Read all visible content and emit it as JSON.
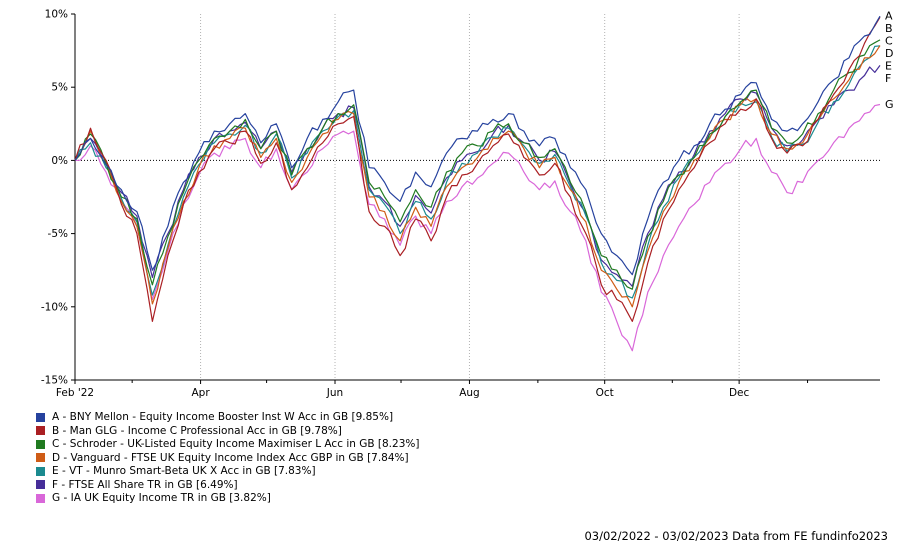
{
  "chart_data": {
    "type": "line",
    "title": "",
    "date_range": "03/02/2022 - 03/02/2023",
    "ylim": [
      -15,
      10
    ],
    "grid": "vertical dotted gridlines at labeled month ticks; dotted horizontal zero line",
    "legend_position": "bottom-left",
    "y_ticks": [
      {
        "value": 10,
        "label": "10%"
      },
      {
        "value": 5,
        "label": "5%"
      },
      {
        "value": 0,
        "label": "0%"
      },
      {
        "value": -5,
        "label": "-5%"
      },
      {
        "value": -10,
        "label": "-10%"
      },
      {
        "value": -15,
        "label": "-15%"
      }
    ],
    "x_ticks": [
      {
        "label": "Feb '22",
        "pos": 0.0
      },
      {
        "label": "Apr",
        "pos": 0.156
      },
      {
        "label": "Jun",
        "pos": 0.323
      },
      {
        "label": "Aug",
        "pos": 0.49
      },
      {
        "label": "Oct",
        "pos": 0.658
      },
      {
        "label": "Dec",
        "pos": 0.825
      }
    ],
    "x_minor_tick_positions": [
      0.071,
      0.238,
      0.405,
      0.575,
      0.742,
      0.91
    ],
    "series": [
      {
        "id": "A",
        "name": "BNY Mellon - Equity Income Booster Inst W Acc in GB",
        "final_pct": 9.85,
        "color": "#26429E",
        "values": [
          0,
          1.5,
          -0.3,
          -2.0,
          -3.5,
          -7.5,
          -4.5,
          -1.5,
          0.5,
          2.0,
          2.5,
          3.2,
          1.2,
          2.5,
          -0.5,
          1.5,
          2.8,
          4.0,
          4.8,
          -0.5,
          -1.5,
          -2.8,
          -0.8,
          -1.8,
          0.5,
          1.5,
          2.0,
          2.8,
          3.2,
          2.0,
          1.0,
          1.5,
          -0.5,
          -2.0,
          -5.0,
          -6.5,
          -7.8,
          -4.0,
          -1.5,
          0.0,
          1.0,
          2.5,
          3.5,
          4.5,
          5.3,
          2.8,
          2.0,
          2.5,
          4.0,
          5.5,
          7.0,
          8.5,
          9.85
        ]
      },
      {
        "id": "B",
        "name": "Man GLG - Income C Professional Acc in GB",
        "final_pct": 9.78,
        "color": "#AA1F23",
        "values": [
          0,
          2.2,
          0.0,
          -3.0,
          -5.0,
          -11.0,
          -6.5,
          -3.0,
          -0.8,
          0.8,
          1.2,
          2.0,
          -0.2,
          1.2,
          -2.0,
          -0.5,
          1.2,
          2.5,
          3.0,
          -3.5,
          -4.5,
          -6.5,
          -4.0,
          -5.5,
          -2.5,
          -1.0,
          -0.2,
          1.0,
          1.8,
          0.2,
          -1.0,
          -0.2,
          -2.5,
          -5.0,
          -8.5,
          -9.5,
          -11.0,
          -7.0,
          -4.0,
          -2.0,
          -0.5,
          1.2,
          2.5,
          3.5,
          4.2,
          1.5,
          0.5,
          1.0,
          2.8,
          4.5,
          6.2,
          8.0,
          9.78
        ]
      },
      {
        "id": "C",
        "name": "Schroder - UK-Listed Equity Income Maximiser L Acc in GB",
        "final_pct": 8.23,
        "color": "#207A20",
        "values": [
          0,
          1.8,
          -0.2,
          -2.5,
          -4.0,
          -8.5,
          -5.2,
          -2.2,
          0.0,
          1.5,
          2.0,
          2.8,
          0.8,
          2.0,
          -1.0,
          0.8,
          2.2,
          3.2,
          3.8,
          -1.5,
          -2.5,
          -4.2,
          -2.0,
          -3.2,
          -0.8,
          0.5,
          1.0,
          2.0,
          2.5,
          1.2,
          0.2,
          0.8,
          -1.5,
          -3.5,
          -6.5,
          -7.5,
          -8.8,
          -5.2,
          -2.8,
          -1.0,
          0.2,
          1.8,
          3.0,
          4.0,
          4.8,
          2.2,
          1.2,
          1.8,
          3.2,
          4.8,
          6.0,
          7.2,
          8.23
        ]
      },
      {
        "id": "D",
        "name": "Vanguard - FTSE UK Equity Income Index Acc GBP in GB",
        "final_pct": 7.84,
        "color": "#CF5C16",
        "values": [
          0,
          2.0,
          -0.2,
          -2.8,
          -4.5,
          -9.8,
          -6.0,
          -2.8,
          -0.5,
          1.0,
          1.5,
          2.2,
          0.2,
          1.5,
          -1.5,
          0.2,
          1.8,
          2.8,
          3.2,
          -2.5,
          -3.5,
          -5.5,
          -3.2,
          -4.5,
          -1.8,
          -0.5,
          0.2,
          1.5,
          2.0,
          0.8,
          -0.5,
          0.2,
          -2.0,
          -4.2,
          -7.5,
          -8.8,
          -10.0,
          -6.2,
          -3.5,
          -1.5,
          0.0,
          1.5,
          2.8,
          3.8,
          4.2,
          1.8,
          0.8,
          1.2,
          2.8,
          4.2,
          5.5,
          7.0,
          7.84
        ]
      },
      {
        "id": "E",
        "name": "VT - Munro Smart-Beta UK X Acc in GB",
        "final_pct": 7.83,
        "color": "#1B8A8F",
        "values": [
          0,
          1.2,
          -0.5,
          -2.6,
          -4.2,
          -9.2,
          -5.8,
          -2.5,
          -0.3,
          1.2,
          1.8,
          2.4,
          0.5,
          1.8,
          -1.2,
          0.5,
          2.0,
          3.0,
          3.4,
          -2.0,
          -3.0,
          -5.0,
          -2.8,
          -4.0,
          -1.5,
          -0.2,
          0.5,
          1.6,
          2.2,
          1.0,
          -0.2,
          0.4,
          -1.8,
          -3.8,
          -7.0,
          -8.2,
          -9.4,
          -5.8,
          -3.2,
          -1.2,
          0.2,
          1.6,
          3.0,
          3.9,
          4.0,
          1.6,
          0.6,
          1.1,
          2.6,
          4.0,
          5.2,
          6.8,
          7.83
        ]
      },
      {
        "id": "F",
        "name": "FTSE All Share TR in GB",
        "final_pct": 6.49,
        "color": "#462E99",
        "values": [
          0,
          1.5,
          0.0,
          -2.2,
          -3.8,
          -8.0,
          -5.0,
          -2.0,
          0.2,
          1.5,
          2.0,
          2.6,
          0.8,
          2.0,
          -0.8,
          0.8,
          2.2,
          3.2,
          3.6,
          -1.8,
          -2.8,
          -4.5,
          -2.4,
          -3.6,
          -1.2,
          0.0,
          0.6,
          1.8,
          2.4,
          1.2,
          0.0,
          0.6,
          -1.6,
          -3.6,
          -6.8,
          -7.8,
          -8.6,
          -5.0,
          -2.6,
          -0.8,
          0.4,
          2.0,
          3.2,
          4.2,
          4.6,
          2.2,
          1.0,
          1.4,
          2.8,
          3.8,
          4.8,
          5.8,
          6.49
        ]
      },
      {
        "id": "G",
        "name": "IA UK Equity Income TR in GB",
        "final_pct": 3.82,
        "color": "#D967D9",
        "values": [
          0,
          1.0,
          -0.8,
          -2.8,
          -4.5,
          -9.5,
          -6.2,
          -3.0,
          -1.0,
          0.5,
          0.8,
          1.5,
          -0.5,
          0.8,
          -2.0,
          -0.8,
          0.8,
          1.8,
          2.0,
          -3.0,
          -4.0,
          -5.8,
          -3.8,
          -5.0,
          -2.8,
          -1.8,
          -1.2,
          -0.2,
          0.5,
          -0.8,
          -2.0,
          -1.4,
          -3.5,
          -5.5,
          -9.0,
          -11.0,
          -13.0,
          -9.0,
          -6.5,
          -4.5,
          -3.0,
          -1.5,
          -0.2,
          0.8,
          1.5,
          -0.8,
          -2.2,
          -1.5,
          0.0,
          1.2,
          2.2,
          3.2,
          3.82
        ]
      }
    ]
  },
  "legend": {
    "items": [
      {
        "letter": "A",
        "color": "#26429E",
        "label": "A - BNY Mellon - Equity Income Booster Inst W Acc in GB [9.85%]"
      },
      {
        "letter": "B",
        "color": "#AA1F23",
        "label": "B - Man GLG - Income C Professional Acc in GB [9.78%]"
      },
      {
        "letter": "C",
        "color": "#207A20",
        "label": "C - Schroder - UK-Listed Equity Income Maximiser L Acc in GB [8.23%]"
      },
      {
        "letter": "D",
        "color": "#CF5C16",
        "label": "D - Vanguard - FTSE UK Equity Income Index Acc GBP in GB [7.84%]"
      },
      {
        "letter": "E",
        "color": "#1B8A8F",
        "label": "E - VT - Munro Smart-Beta UK X Acc in GB [7.83%]"
      },
      {
        "letter": "F",
        "color": "#462E99",
        "label": "F - FTSE All Share TR in GB [6.49%]"
      },
      {
        "letter": "G",
        "color": "#D967D9",
        "label": "G - IA UK Equity Income TR in GB [3.82%]"
      }
    ]
  },
  "footer": {
    "text": "03/02/2022 - 03/02/2023 Data from FE fundinfo2023"
  }
}
